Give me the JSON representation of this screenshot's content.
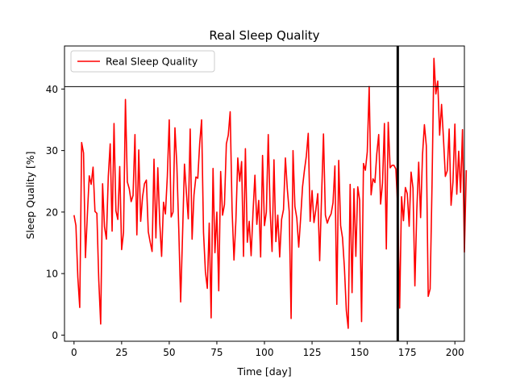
{
  "chart_data": {
    "type": "line",
    "title": "Real Sleep Quality",
    "xlabel": "Time [day]",
    "ylabel": "Sleep Quality [%]",
    "xlim": [
      -5,
      205
    ],
    "ylim": [
      -1,
      47
    ],
    "xticks": [
      0,
      25,
      50,
      75,
      100,
      125,
      150,
      175,
      200
    ],
    "yticks": [
      0,
      10,
      20,
      30,
      40
    ],
    "grid": false,
    "legend": "upper-left",
    "vertical_line": {
      "x": 170,
      "color": "#000000"
    },
    "horizontal_line": {
      "y": 40.4,
      "color": "#000000"
    },
    "series": [
      {
        "name": "Real Sleep Quality",
        "color": "#ff0000",
        "y": [
          19.5,
          17.8,
          9.4,
          4.5,
          31.3,
          29.6,
          12.6,
          19.5,
          25.9,
          24.5,
          27.3,
          20.1,
          19.8,
          8.9,
          1.8,
          24.6,
          17.6,
          15.6,
          25.8,
          31.1,
          16.9,
          34.4,
          20.2,
          18.8,
          27.4,
          13.9,
          16.7,
          38.3,
          24.9,
          23.8,
          21.7,
          22.7,
          32.6,
          16.3,
          30.1,
          18.5,
          22.5,
          24.6,
          25.2,
          16.8,
          15.1,
          13.6,
          28.6,
          15.8,
          27.2,
          18.3,
          12.8,
          21.6,
          19.7,
          25.8,
          35.0,
          19.2,
          20.0,
          33.7,
          27.6,
          17.3,
          5.4,
          16.4,
          27.8,
          23.2,
          18.9,
          33.5,
          15.6,
          22.8,
          25.7,
          25.5,
          31.2,
          35.0,
          16.7,
          10.3,
          7.6,
          18.2,
          2.8,
          27.1,
          13.4,
          20.0,
          7.2,
          26.6,
          19.5,
          21.2,
          31.1,
          32.5,
          36.3,
          20.4,
          12.2,
          18.6,
          28.8,
          25.0,
          28.2,
          12.8,
          30.3,
          15.1,
          18.5,
          12.9,
          20.0,
          26.0,
          18.0,
          21.9,
          12.7,
          29.2,
          17.8,
          20.0,
          32.6,
          20.2,
          13.6,
          28.5,
          15.2,
          19.5,
          12.7,
          18.8,
          20.4,
          28.8,
          23.8,
          20.1,
          2.7,
          30.0,
          20.9,
          19.0,
          14.3,
          19.0,
          24.1,
          26.8,
          29.1,
          32.8,
          18.5,
          23.5,
          18.3,
          20.4,
          23.0,
          12.1,
          22.6,
          32.7,
          19.5,
          18.2,
          19.1,
          19.7,
          21.5,
          27.5,
          5.0,
          28.4,
          17.8,
          15.8,
          10.9,
          4.0,
          1.1,
          24.5,
          6.9,
          23.8,
          12.8,
          24.1,
          21.9,
          2.2,
          27.9,
          26.8,
          29.8,
          40.4,
          22.8,
          25.4,
          24.8,
          29.5,
          32.6,
          21.3,
          24.7,
          34.4,
          14.0,
          34.6,
          27.2,
          27.6,
          27.6,
          27.0,
          20.8,
          4.4,
          22.5,
          18.6,
          24.0,
          23.0,
          17.7,
          26.5,
          23.9,
          8.0,
          20.2,
          28.1,
          19.1,
          29.3,
          34.2,
          30.8,
          6.3,
          7.5,
          24.4,
          45.0,
          39.2,
          41.3,
          32.5,
          37.5,
          32.0,
          25.8,
          26.7,
          33.5,
          21.1,
          24.9,
          34.3,
          22.9,
          29.9,
          23.2,
          33.4,
          13.5,
          26.8
        ]
      }
    ]
  }
}
